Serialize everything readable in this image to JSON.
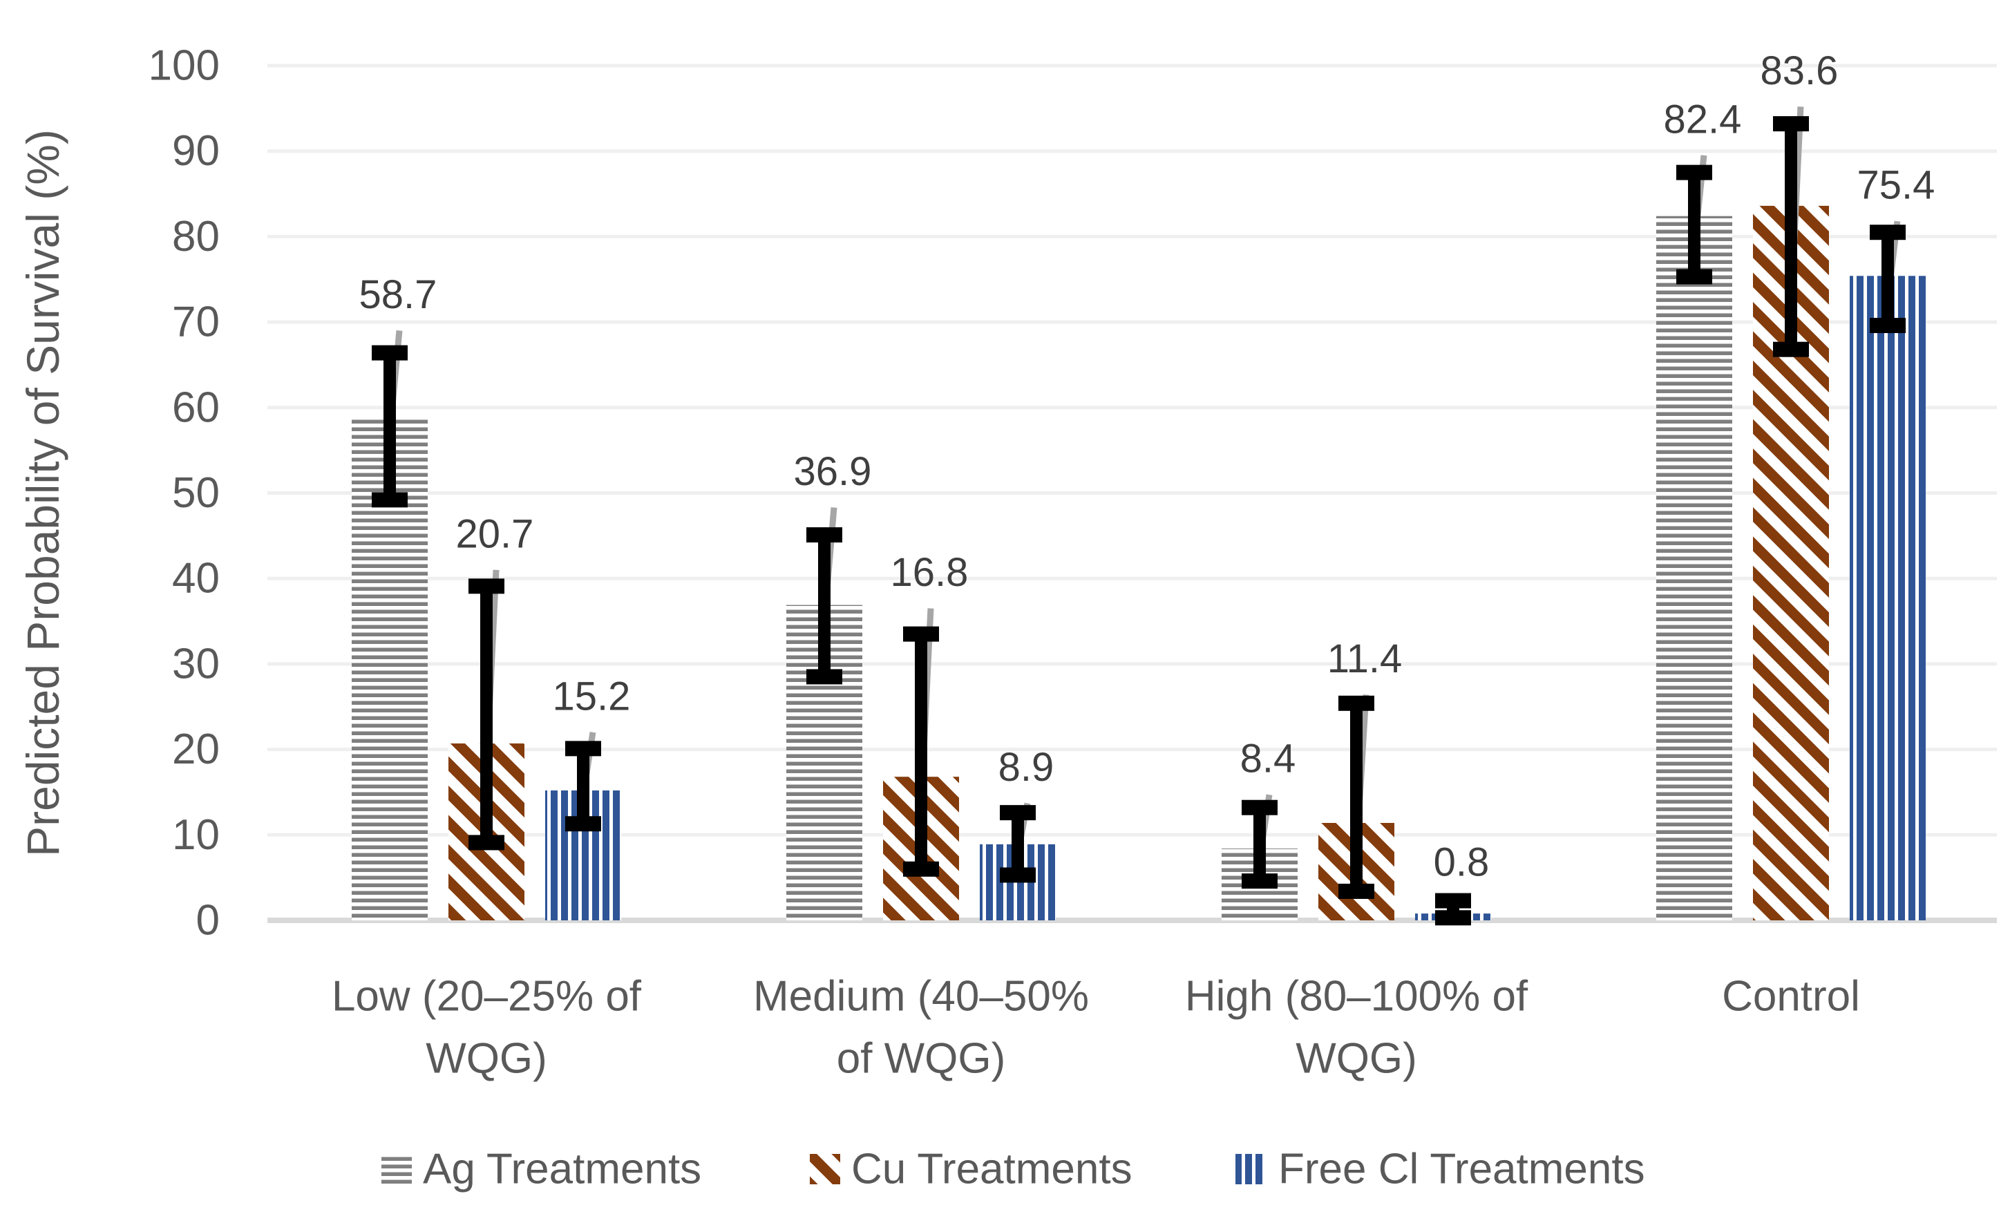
{
  "figure": {
    "background": "#ffffff",
    "y_axis_title": "Predicted Probability of Survival (%)"
  },
  "colors": {
    "ag_series": "#7f7f7f",
    "cu_series": "#843c0c",
    "cl_series": "#2f5597",
    "axis_text": "#595959",
    "data_label_text": "#3f3f3f",
    "gridline": "#efefef",
    "baseline": "#d9d9d9",
    "error_bar_black": "#000000",
    "error_whisker_gray": "#a6a6a6"
  },
  "chart_data": {
    "type": "bar",
    "title": "",
    "xlabel": "",
    "ylabel": "Predicted Probability of Survival (%)",
    "ylim": [
      0,
      100
    ],
    "y_ticks": [
      0,
      10,
      20,
      30,
      40,
      50,
      60,
      70,
      80,
      90,
      100
    ],
    "grid": true,
    "data_labels": true,
    "legend_position": "bottom",
    "categories": [
      "Low (20–25% of WQG)",
      "Medium  (40–50% of WQG)",
      "High (80–100% of WQG)",
      "Control"
    ],
    "category_label_lines": [
      [
        "Low (20–25% of",
        "WQG)"
      ],
      [
        "Medium  (40–50%",
        "of WQG)"
      ],
      [
        "High (80–100% of",
        "WQG)"
      ],
      [
        "Control"
      ]
    ],
    "series": [
      {
        "name": "Ag Treatments",
        "pattern": "horizontal-stripes",
        "color": "#7f7f7f",
        "values": [
          58.7,
          36.9,
          8.4,
          82.4
        ],
        "error_low": [
          49.2,
          28.5,
          4.6,
          75.3
        ],
        "error_high": [
          66.4,
          45.1,
          13.2,
          87.5
        ],
        "gray_whisker_top": [
          69.0,
          48.3,
          14.7,
          89.5
        ],
        "gray_whisker_bottom": [
          55.0,
          33.0,
          6.0,
          77.0
        ]
      },
      {
        "name": "Cu Treatments",
        "pattern": "diagonal-stripes",
        "color": "#843c0c",
        "values": [
          20.7,
          16.8,
          11.4,
          83.6
        ],
        "error_low": [
          9.1,
          6.0,
          3.4,
          66.8
        ],
        "error_high": [
          39.1,
          33.5,
          25.4,
          93.2
        ],
        "gray_whisker_top": [
          41.0,
          36.5,
          26.4,
          95.2
        ],
        "gray_whisker_bottom": [
          14.0,
          10.0,
          5.0,
          68.0
        ]
      },
      {
        "name": "Free Cl Treatments",
        "pattern": "vertical-stripes",
        "color": "#2f5597",
        "values": [
          15.2,
          8.9,
          0.8,
          75.4
        ],
        "error_low": [
          11.3,
          5.3,
          0.3,
          69.6
        ],
        "error_high": [
          20.1,
          12.6,
          2.3,
          80.5
        ],
        "gray_whisker_top": [
          22.0,
          13.7,
          2.6,
          81.8
        ],
        "gray_whisker_bottom": [
          13.5,
          7.0,
          0.8,
          71.0
        ]
      }
    ]
  },
  "legend": {
    "items": [
      {
        "label": "Ag Treatments",
        "swatch": "horizontal-stripes-swatch"
      },
      {
        "label": "Cu Treatments",
        "swatch": "diagonal-stripes-swatch"
      },
      {
        "label": "Free Cl Treatments",
        "swatch": "vertical-stripes-swatch"
      }
    ]
  }
}
